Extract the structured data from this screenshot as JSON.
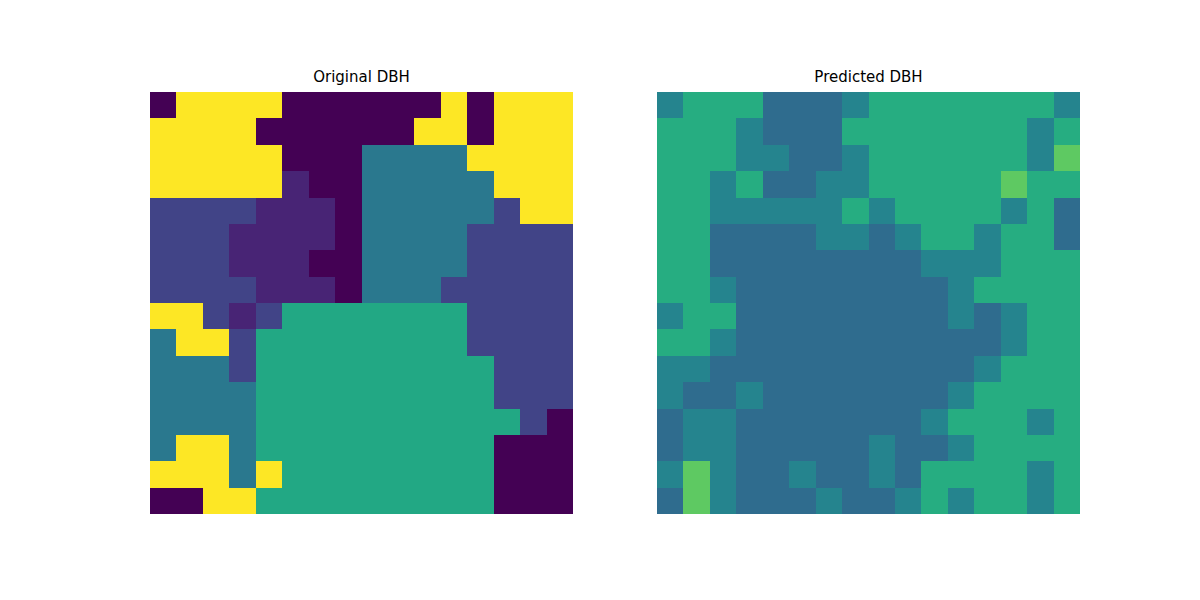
{
  "chart_data": [
    {
      "type": "heatmap",
      "title": "Original DBH",
      "zlim": [
        0,
        1
      ],
      "tick_labels": false,
      "z": [
        [
          0,
          1,
          1,
          1,
          1,
          0,
          0,
          0,
          0,
          0,
          0,
          1,
          0,
          1,
          1,
          1
        ],
        [
          1,
          1,
          1,
          1,
          0,
          0,
          0,
          0,
          0,
          0,
          1,
          1,
          0,
          1,
          1,
          1
        ],
        [
          1,
          1,
          1,
          1,
          1,
          0,
          0,
          0,
          0.4,
          0.4,
          0.4,
          0.4,
          1,
          1,
          1,
          1
        ],
        [
          1,
          1,
          1,
          1,
          1,
          0.1,
          0,
          0,
          0.4,
          0.4,
          0.4,
          0.4,
          0.4,
          1,
          1,
          1
        ],
        [
          0.2,
          0.2,
          0.2,
          0.2,
          0.1,
          0.1,
          0.1,
          0,
          0.4,
          0.4,
          0.4,
          0.4,
          0.4,
          0.2,
          1,
          1
        ],
        [
          0.2,
          0.2,
          0.2,
          0.1,
          0.1,
          0.1,
          0.1,
          0,
          0.4,
          0.4,
          0.4,
          0.4,
          0.2,
          0.2,
          0.2,
          0.2
        ],
        [
          0.2,
          0.2,
          0.2,
          0.1,
          0.1,
          0.1,
          0,
          0,
          0.4,
          0.4,
          0.4,
          0.4,
          0.2,
          0.2,
          0.2,
          0.2
        ],
        [
          0.2,
          0.2,
          0.2,
          0.2,
          0.1,
          0.1,
          0.1,
          0,
          0.4,
          0.4,
          0.4,
          0.2,
          0.2,
          0.2,
          0.2,
          0.2
        ],
        [
          1,
          1,
          0.2,
          0.1,
          0.2,
          0.6,
          0.6,
          0.6,
          0.6,
          0.6,
          0.6,
          0.6,
          0.2,
          0.2,
          0.2,
          0.2
        ],
        [
          0.4,
          1,
          1,
          0.2,
          0.6,
          0.6,
          0.6,
          0.6,
          0.6,
          0.6,
          0.6,
          0.6,
          0.2,
          0.2,
          0.2,
          0.2
        ],
        [
          0.4,
          0.4,
          0.4,
          0.2,
          0.6,
          0.6,
          0.6,
          0.6,
          0.6,
          0.6,
          0.6,
          0.6,
          0.6,
          0.2,
          0.2,
          0.2
        ],
        [
          0.4,
          0.4,
          0.4,
          0.4,
          0.6,
          0.6,
          0.6,
          0.6,
          0.6,
          0.6,
          0.6,
          0.6,
          0.6,
          0.2,
          0.2,
          0.2
        ],
        [
          0.4,
          0.4,
          0.4,
          0.4,
          0.6,
          0.6,
          0.6,
          0.6,
          0.6,
          0.6,
          0.6,
          0.6,
          0.6,
          0.6,
          0.2,
          0
        ],
        [
          0.4,
          1,
          1,
          0.4,
          0.6,
          0.6,
          0.6,
          0.6,
          0.6,
          0.6,
          0.6,
          0.6,
          0.6,
          0,
          0,
          0
        ],
        [
          1,
          1,
          1,
          0.4,
          1,
          0.6,
          0.6,
          0.6,
          0.6,
          0.6,
          0.6,
          0.6,
          0.6,
          0,
          0,
          0
        ],
        [
          0,
          0,
          1,
          1,
          0.6,
          0.6,
          0.6,
          0.6,
          0.6,
          0.6,
          0.6,
          0.6,
          0.6,
          0,
          0,
          0
        ]
      ]
    },
    {
      "type": "heatmap",
      "title": "Predicted DBH",
      "zlim": [
        0,
        1
      ],
      "tick_labels": false,
      "z": [
        [
          0.45,
          0.62,
          0.62,
          0.62,
          0.35,
          0.35,
          0.35,
          0.45,
          0.62,
          0.62,
          0.62,
          0.62,
          0.62,
          0.62,
          0.62,
          0.45
        ],
        [
          0.62,
          0.62,
          0.62,
          0.45,
          0.35,
          0.35,
          0.35,
          0.62,
          0.62,
          0.62,
          0.62,
          0.62,
          0.62,
          0.62,
          0.45,
          0.62
        ],
        [
          0.62,
          0.62,
          0.62,
          0.45,
          0.45,
          0.35,
          0.35,
          0.45,
          0.62,
          0.62,
          0.62,
          0.62,
          0.62,
          0.62,
          0.45,
          0.75
        ],
        [
          0.62,
          0.62,
          0.45,
          0.62,
          0.35,
          0.35,
          0.45,
          0.45,
          0.62,
          0.62,
          0.62,
          0.62,
          0.62,
          0.75,
          0.62,
          0.62
        ],
        [
          0.62,
          0.62,
          0.45,
          0.45,
          0.45,
          0.45,
          0.45,
          0.62,
          0.45,
          0.62,
          0.62,
          0.62,
          0.62,
          0.45,
          0.62,
          0.35
        ],
        [
          0.62,
          0.62,
          0.35,
          0.35,
          0.35,
          0.35,
          0.45,
          0.45,
          0.35,
          0.45,
          0.62,
          0.62,
          0.45,
          0.62,
          0.62,
          0.35
        ],
        [
          0.62,
          0.62,
          0.35,
          0.35,
          0.35,
          0.35,
          0.35,
          0.35,
          0.35,
          0.35,
          0.45,
          0.45,
          0.45,
          0.62,
          0.62,
          0.62
        ],
        [
          0.62,
          0.62,
          0.45,
          0.35,
          0.35,
          0.35,
          0.35,
          0.35,
          0.35,
          0.35,
          0.35,
          0.45,
          0.62,
          0.62,
          0.62,
          0.62
        ],
        [
          0.45,
          0.62,
          0.62,
          0.35,
          0.35,
          0.35,
          0.35,
          0.35,
          0.35,
          0.35,
          0.35,
          0.45,
          0.35,
          0.45,
          0.62,
          0.62
        ],
        [
          0.62,
          0.62,
          0.45,
          0.35,
          0.35,
          0.35,
          0.35,
          0.35,
          0.35,
          0.35,
          0.35,
          0.35,
          0.35,
          0.45,
          0.62,
          0.62
        ],
        [
          0.45,
          0.45,
          0.35,
          0.35,
          0.35,
          0.35,
          0.35,
          0.35,
          0.35,
          0.35,
          0.35,
          0.35,
          0.45,
          0.62,
          0.62,
          0.62
        ],
        [
          0.45,
          0.35,
          0.35,
          0.45,
          0.35,
          0.35,
          0.35,
          0.35,
          0.35,
          0.35,
          0.35,
          0.45,
          0.62,
          0.62,
          0.62,
          0.62
        ],
        [
          0.35,
          0.45,
          0.45,
          0.35,
          0.35,
          0.35,
          0.35,
          0.35,
          0.35,
          0.35,
          0.45,
          0.62,
          0.62,
          0.62,
          0.45,
          0.62
        ],
        [
          0.35,
          0.45,
          0.45,
          0.35,
          0.35,
          0.35,
          0.35,
          0.35,
          0.45,
          0.35,
          0.35,
          0.45,
          0.62,
          0.62,
          0.62,
          0.62
        ],
        [
          0.45,
          0.75,
          0.45,
          0.35,
          0.35,
          0.45,
          0.35,
          0.35,
          0.45,
          0.35,
          0.62,
          0.62,
          0.62,
          0.62,
          0.45,
          0.62
        ],
        [
          0.35,
          0.75,
          0.45,
          0.35,
          0.35,
          0.35,
          0.45,
          0.35,
          0.35,
          0.45,
          0.62,
          0.45,
          0.62,
          0.62,
          0.45,
          0.62
        ]
      ]
    }
  ]
}
